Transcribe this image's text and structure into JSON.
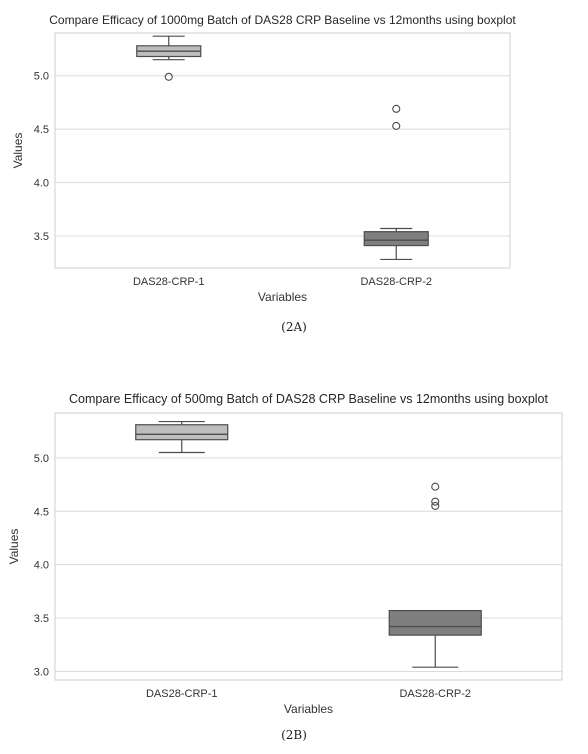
{
  "chart_data": [
    {
      "type": "boxplot",
      "title": "Compare Efficacy of 1000mg Batch of DAS28 CRP Baseline vs 12months using boxplot",
      "xlabel": "Variables",
      "ylabel": "Values",
      "categories": [
        "DAS28-CRP-1",
        "DAS28-CRP-2"
      ],
      "ylim": [
        3.2,
        5.4
      ],
      "yticks": [
        "3.5",
        "4.0",
        "4.5",
        "5.0"
      ],
      "grid": true,
      "colors": [
        "#bdbdbd",
        "#7f7f7f"
      ],
      "boxes": [
        {
          "name": "DAS28-CRP-1",
          "whisker_low": 5.15,
          "q1": 5.18,
          "median": 5.23,
          "q3": 5.28,
          "whisker_high": 5.37,
          "outliers": [
            4.99
          ]
        },
        {
          "name": "DAS28-CRP-2",
          "whisker_low": 3.28,
          "q1": 3.41,
          "median": 3.46,
          "q3": 3.54,
          "whisker_high": 3.57,
          "outliers": [
            4.53,
            4.69
          ]
        }
      ],
      "caption": "(2A)"
    },
    {
      "type": "boxplot",
      "title": "Compare Efficacy of 500mg Batch of DAS28 CRP Baseline vs 12months using boxplot",
      "xlabel": "Variables",
      "ylabel": "Values",
      "categories": [
        "DAS28-CRP-1",
        "DAS28-CRP-2"
      ],
      "ylim": [
        2.92,
        5.42
      ],
      "yticks": [
        "3.0",
        "3.5",
        "4.0",
        "4.5",
        "5.0"
      ],
      "grid": true,
      "colors": [
        "#bdbdbd",
        "#7f7f7f"
      ],
      "boxes": [
        {
          "name": "DAS28-CRP-1",
          "whisker_low": 5.05,
          "q1": 5.17,
          "median": 5.22,
          "q3": 5.31,
          "whisker_high": 5.34,
          "outliers": []
        },
        {
          "name": "DAS28-CRP-2",
          "whisker_low": 3.04,
          "q1": 3.34,
          "median": 3.42,
          "q3": 3.57,
          "whisker_high": 3.57,
          "outliers": [
            4.55,
            4.59,
            4.73
          ]
        }
      ],
      "caption": "(2B)"
    }
  ]
}
